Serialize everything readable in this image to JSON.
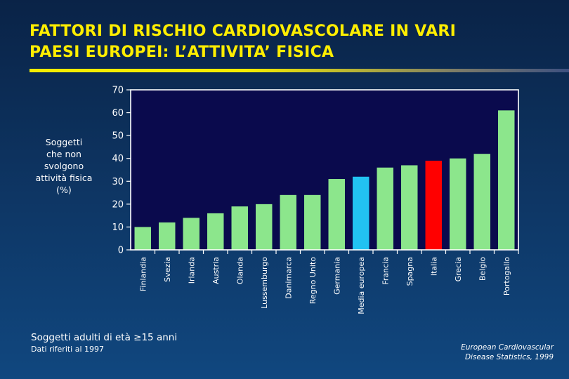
{
  "title": {
    "line1": "FATTORI DI RISCHIO CARDIOVASCOLARE IN VARI",
    "line2": "PAESI EUROPEI: L’ATTIVITA’ FISICA"
  },
  "ylabel_lines": [
    "Soggetti",
    "che non",
    "svolgono",
    "attività fisica",
    "(%)"
  ],
  "footnote": {
    "line1": "Soggetti adulti di età ≥15 anni",
    "line2": "Dati riferiti al 1997"
  },
  "source": {
    "line1": "European Cardiovascular",
    "line2": "Disease Statistics, 1999"
  },
  "colors": {
    "plot_bg": "#0a0a4d",
    "default_bar": "#8ce68c",
    "media_bar": "#22c2f2",
    "italia_bar": "#ff0000",
    "title": "#ffee00"
  },
  "chart_data": {
    "type": "bar",
    "categories": [
      "Finlandia",
      "Svezia",
      "Irlanda",
      "Austria",
      "Olanda",
      "Lussemburgo",
      "Danimarca",
      "Regno Unito",
      "Germania",
      "Media europea",
      "Francia",
      "Spagna",
      "Italia",
      "Grecia",
      "Belgio",
      "Portogallo"
    ],
    "values": [
      10,
      12,
      14,
      16,
      19,
      20,
      24,
      24,
      31,
      32,
      36,
      37,
      39,
      40,
      42,
      61
    ],
    "highlight": {
      "Media europea": "#22c2f2",
      "Italia": "#ff0000"
    },
    "ylim": [
      0,
      70
    ],
    "yticks": [
      0,
      10,
      20,
      30,
      40,
      50,
      60,
      70
    ],
    "grid": false,
    "legend": "none"
  }
}
